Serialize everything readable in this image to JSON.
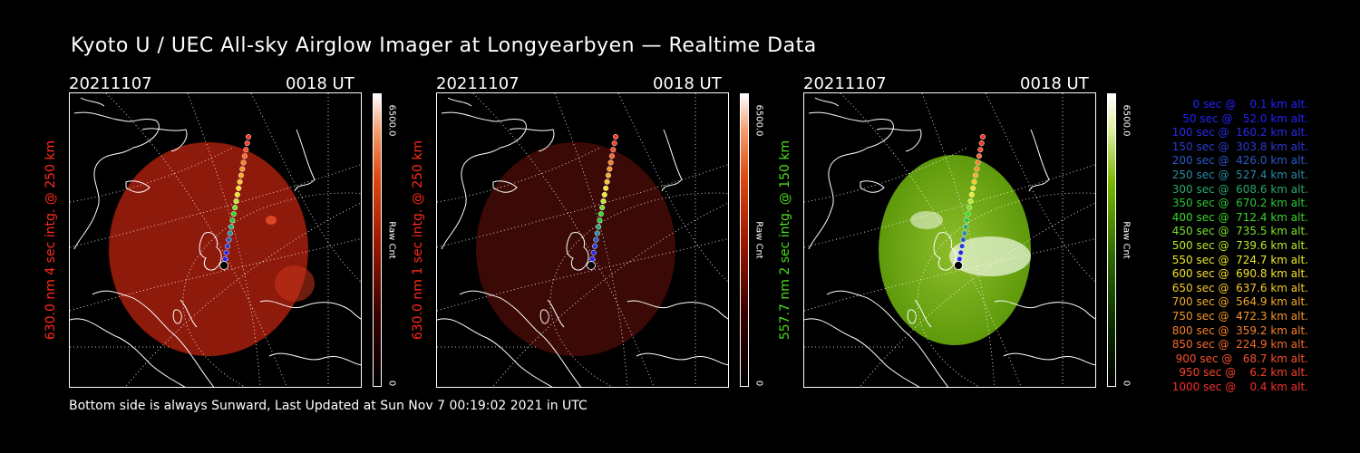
{
  "title": "Kyoto U / UEC All-sky Airglow Imager at Longyearbyen — Realtime Data",
  "footer": "Bottom side is always Sunward, Last Updated at Sun Nov  7 00:19:02 2021 in UTC",
  "panels": [
    {
      "date": "20211107",
      "time": "0018 UT",
      "side_label": "630.0 nm 4 sec intg. @ 250 km",
      "side_color": "#ff2a1a",
      "cbar_max": "6500.0",
      "cbar_unit": "Raw Cnt",
      "cbar_min": "0",
      "cmap": "red",
      "brightness": 1.0
    },
    {
      "date": "20211107",
      "time": "0018 UT",
      "side_label": "630.0 nm 1 sec intg. @ 250 km",
      "side_color": "#ff2a1a",
      "cbar_max": "6500.0",
      "cbar_unit": "Raw Cnt",
      "cbar_min": "0",
      "cmap": "red",
      "brightness": 0.35
    },
    {
      "date": "20211107",
      "time": "0018 UT",
      "side_label": "557.7 nm 2 sec intg. @ 150 km",
      "side_color": "#4cdc1e",
      "cbar_max": "6500.0",
      "cbar_unit": "Raw Cnt",
      "cbar_min": "0",
      "cmap": "green",
      "brightness": 1.0
    }
  ],
  "legend": [
    {
      "text": "   0 sec @    0.1 km alt.",
      "color": "#2222ff"
    },
    {
      "text": "  50 sec @   52.0 km alt.",
      "color": "#2222ff"
    },
    {
      "text": " 100 sec @  160.2 km alt.",
      "color": "#2a2ae6"
    },
    {
      "text": " 150 sec @  303.8 km alt.",
      "color": "#2a3ad6"
    },
    {
      "text": " 200 sec @  426.0 km alt.",
      "color": "#2a5ac8"
    },
    {
      "text": " 250 sec @  527.4 km alt.",
      "color": "#2a8aa8"
    },
    {
      "text": " 300 sec @  608.6 km alt.",
      "color": "#2aa870"
    },
    {
      "text": " 350 sec @  670.2 km alt.",
      "color": "#2ac83a"
    },
    {
      "text": " 400 sec @  712.4 km alt.",
      "color": "#3ad62a"
    },
    {
      "text": " 450 sec @  735.5 km alt.",
      "color": "#7ae02a"
    },
    {
      "text": " 500 sec @  739.6 km alt.",
      "color": "#b8ea2a"
    },
    {
      "text": " 550 sec @  724.7 km alt.",
      "color": "#eaea2a"
    },
    {
      "text": " 600 sec @  690.8 km alt.",
      "color": "#f6e02a"
    },
    {
      "text": " 650 sec @  637.6 km alt.",
      "color": "#f6c82a"
    },
    {
      "text": " 700 sec @  564.9 km alt.",
      "color": "#f6aa2a"
    },
    {
      "text": " 750 sec @  472.3 km alt.",
      "color": "#f6962a"
    },
    {
      "text": " 800 sec @  359.2 km alt.",
      "color": "#f6802a"
    },
    {
      "text": " 850 sec @  224.9 km alt.",
      "color": "#f66a2a"
    },
    {
      "text": " 900 sec @   68.7 km alt.",
      "color": "#f6502a"
    },
    {
      "text": " 950 sec @    6.2 km alt.",
      "color": "#f6402a"
    },
    {
      "text": "1000 sec @    0.4 km alt.",
      "color": "#f6302a"
    }
  ]
}
